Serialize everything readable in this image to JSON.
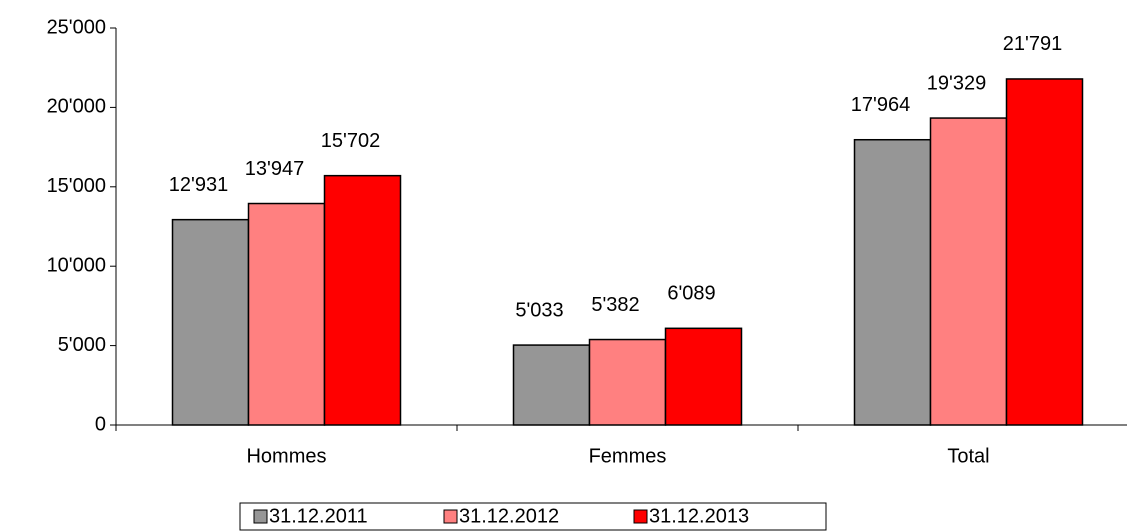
{
  "chart_data": {
    "type": "bar",
    "categories": [
      "Hommes",
      "Femmes",
      "Total"
    ],
    "series": [
      {
        "name": "31.12.2011",
        "color": "#969696",
        "values": [
          12931,
          5033,
          17964
        ],
        "value_labels": [
          "12'931",
          "5'033",
          "17'964"
        ]
      },
      {
        "name": "31.12.2012",
        "color": "#ff8080",
        "values": [
          13947,
          5382,
          19329
        ],
        "value_labels": [
          "13'947",
          "5'382",
          "19'329"
        ]
      },
      {
        "name": "31.12.2013",
        "color": "#ff0000",
        "values": [
          15702,
          6089,
          21791
        ],
        "value_labels": [
          "15'702",
          "6'089",
          "21'791"
        ]
      }
    ],
    "ylim": [
      0,
      25000
    ],
    "yticks": [
      0,
      {
        "value": 5000,
        "label": "5'000"
      },
      {
        "value": 10000,
        "label": "10'000"
      },
      {
        "value": 15000,
        "label": "15'000"
      },
      {
        "value": 20000,
        "label": "20'000"
      },
      {
        "value": 25000,
        "label": "25'000"
      }
    ],
    "grid": false,
    "legend": "bottom"
  }
}
